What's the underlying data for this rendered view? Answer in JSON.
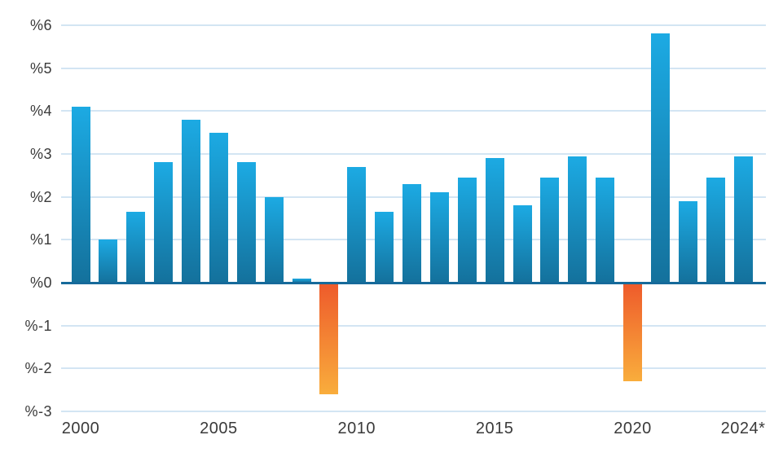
{
  "chart_data": {
    "type": "bar",
    "title": "",
    "xlabel": "",
    "ylabel": "",
    "ylim": [
      -3,
      6
    ],
    "grid": true,
    "legend": "none",
    "years": [
      2000,
      2001,
      2002,
      2003,
      2004,
      2005,
      2006,
      2007,
      2008,
      2009,
      2010,
      2011,
      2012,
      2013,
      2014,
      2015,
      2016,
      2017,
      2018,
      2019,
      2020,
      2021,
      2022,
      2023,
      2024
    ],
    "values": [
      4.1,
      1.0,
      1.65,
      2.8,
      3.8,
      3.5,
      2.8,
      2.0,
      0.1,
      -2.6,
      2.7,
      1.65,
      2.3,
      2.1,
      2.45,
      2.9,
      1.8,
      2.45,
      2.95,
      2.45,
      -2.3,
      5.8,
      1.9,
      2.45,
      2.95
    ],
    "yticks": [
      {
        "value": 6,
        "label": "%6"
      },
      {
        "value": 5,
        "label": "%5"
      },
      {
        "value": 4,
        "label": "%4"
      },
      {
        "value": 3,
        "label": "%3"
      },
      {
        "value": 2,
        "label": "%2"
      },
      {
        "value": 1,
        "label": "%1"
      },
      {
        "value": 0,
        "label": "%0"
      },
      {
        "value": -1,
        "label": "%-1"
      },
      {
        "value": -2,
        "label": "%-2"
      },
      {
        "value": -3,
        "label": "%-3"
      }
    ],
    "xticks": [
      {
        "year": 2000,
        "label": "2000"
      },
      {
        "year": 2005,
        "label": "2005"
      },
      {
        "year": 2010,
        "label": "2010"
      },
      {
        "year": 2015,
        "label": "2015"
      },
      {
        "year": 2020,
        "label": "2020"
      },
      {
        "year": 2024,
        "label": "2024*"
      }
    ],
    "colors": {
      "bar_positive_top": "#1caae3",
      "bar_positive_bottom": "#14719c",
      "bar_negative_top": "#ee5a2b",
      "bar_negative_bottom": "#f9ad3c",
      "axis_line": "#166a9a",
      "gridline": "#d3e5f3",
      "text": "#3a3a3a"
    }
  }
}
